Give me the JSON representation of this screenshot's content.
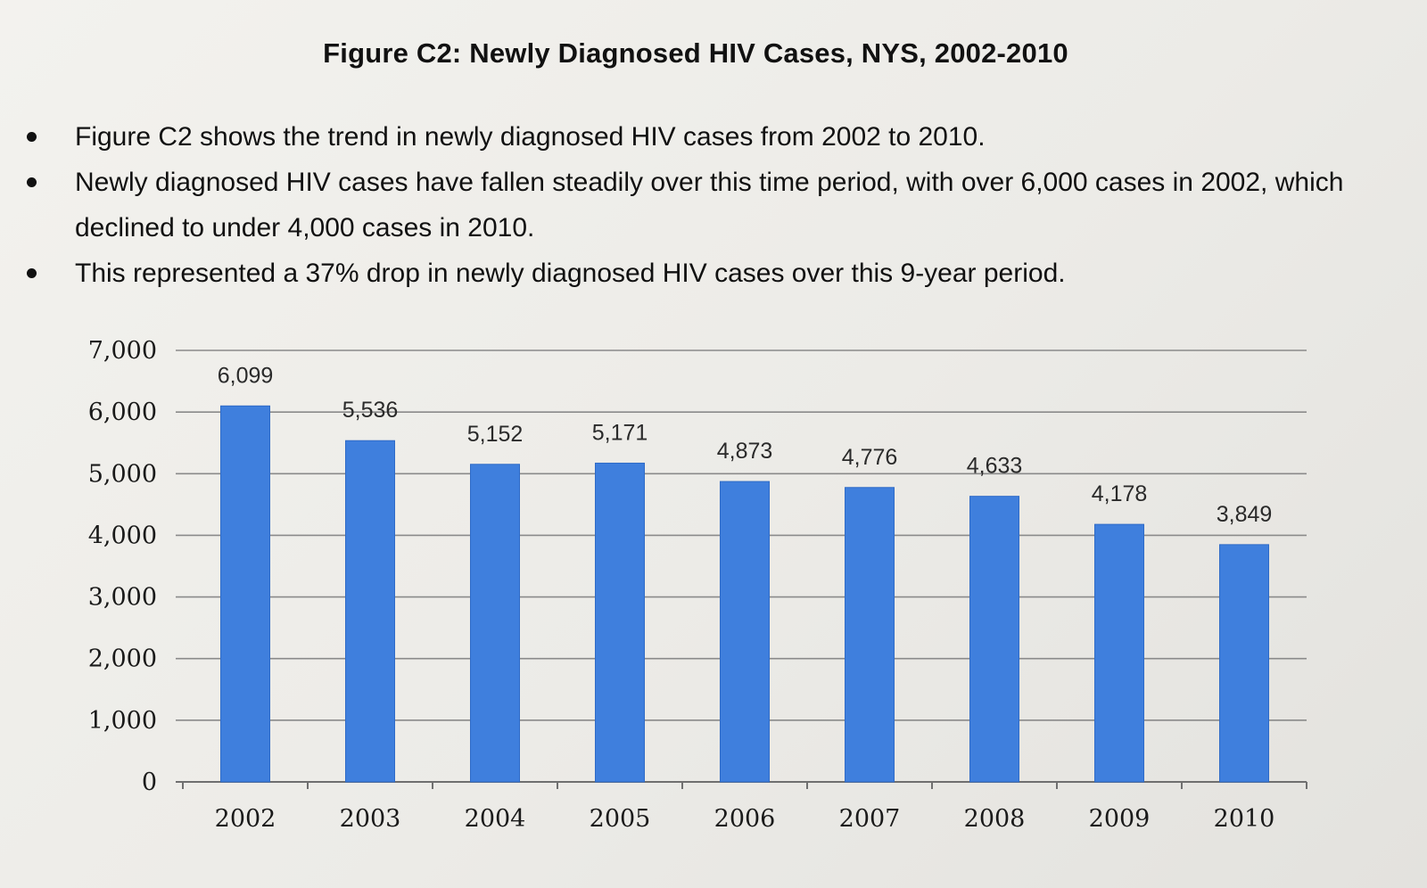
{
  "figure": {
    "title": "Figure C2:  Newly Diagnosed HIV Cases, NYS, 2002-2010"
  },
  "bullets": [
    "Figure C2 shows the trend in newly diagnosed HIV cases from 2002 to 2010.",
    "Newly diagnosed HIV cases have fallen steadily over this time period, with over 6,000 cases in 2002, which declined to under 4,000 cases in 2010.",
    "This represented a 37% drop in newly diagnosed HIV cases over this 9-year period."
  ],
  "colors": {
    "bar": "#3f7fdd",
    "bar_edge": "#2f6bc7",
    "gridline": "#8a8a8a",
    "axis": "#6f6f6f"
  },
  "chart_data": {
    "type": "bar",
    "title": "Figure C2:  Newly Diagnosed HIV Cases, NYS, 2002-2010",
    "xlabel": "",
    "ylabel": "",
    "categories": [
      "2002",
      "2003",
      "2004",
      "2005",
      "2006",
      "2007",
      "2008",
      "2009",
      "2010"
    ],
    "values": [
      6099,
      5536,
      5152,
      5171,
      4873,
      4776,
      4633,
      4178,
      3849
    ],
    "value_labels": [
      "6,099",
      "5,536",
      "5,152",
      "5,171",
      "4,873",
      "4,776",
      "4,633",
      "4,178",
      "3,849"
    ],
    "ylim": [
      0,
      7000
    ],
    "y_ticks": [
      0,
      1000,
      2000,
      3000,
      4000,
      5000,
      6000,
      7000
    ],
    "y_tick_labels": [
      "0",
      "1,000",
      "2,000",
      "3,000",
      "4,000",
      "5,000",
      "6,000",
      "7,000"
    ],
    "grid": true,
    "legend": "none"
  }
}
